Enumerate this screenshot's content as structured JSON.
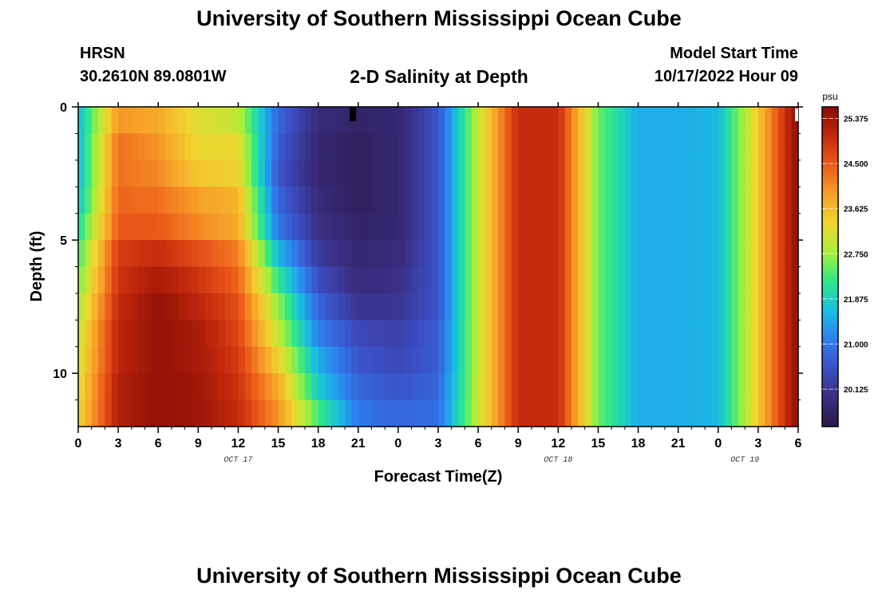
{
  "header": {
    "title": "University of Southern Mississippi Ocean Cube",
    "station": "HRSN",
    "coords": "30.2610N  89.0801W",
    "plot_title": "2-D Salinity at Depth",
    "start_label": "Model Start Time",
    "start_value": "10/17/2022 Hour 09"
  },
  "footer": {
    "title": "University of Southern Mississippi Ocean Cube"
  },
  "colors": {
    "scale": [
      "#2a1a4a",
      "#3a2d80",
      "#3b4fc4",
      "#2f7ff0",
      "#18bfe0",
      "#2fe88a",
      "#a6f03a",
      "#f0d630",
      "#f7a028",
      "#ec5a1a",
      "#c2280c",
      "#8a0d05"
    ]
  },
  "chart_data": {
    "type": "heatmap",
    "xlabel": "Forecast Time(Z)",
    "ylabel": "Depth (ft)",
    "x_range_hours": [
      0,
      54
    ],
    "x_tick_labels": [
      "0",
      "3",
      "6",
      "9",
      "12",
      "15",
      "18",
      "21",
      "0",
      "3",
      "6",
      "9",
      "12",
      "15",
      "18",
      "21",
      "0",
      "3",
      "6"
    ],
    "date_labels": [
      "OCT 17",
      "OCT 18",
      "OCT 19"
    ],
    "y_ticks": [
      "0",
      "5",
      "10"
    ],
    "ylim": [
      0,
      12
    ],
    "colorbar": {
      "unit": "psu",
      "min": 19.4,
      "max": 25.6,
      "ticks": [
        "25.375",
        "24.500",
        "23.625",
        "22.750",
        "21.875",
        "21.000",
        "20.125"
      ]
    },
    "depth_levels_ft": [
      0.5,
      1.5,
      2.5,
      3.5,
      4.5,
      5.5,
      6.5,
      7.5,
      8.5,
      9.5,
      10.5,
      11.5
    ],
    "time_hours": [
      0,
      3,
      6,
      9,
      12,
      15,
      18,
      21,
      24,
      27,
      30,
      33,
      36,
      39,
      42,
      45,
      48,
      51,
      54
    ],
    "salinity_psu": [
      [
        21.6,
        24.0,
        23.8,
        23.2,
        23.0,
        20.8,
        19.9,
        19.7,
        19.8,
        20.6,
        23.0,
        25.0,
        25.0,
        22.5,
        21.5,
        21.5,
        21.6,
        23.5,
        25.6
      ],
      [
        21.6,
        24.3,
        24.0,
        23.3,
        23.3,
        20.7,
        19.8,
        19.6,
        19.8,
        20.6,
        23.0,
        25.0,
        25.0,
        22.5,
        21.5,
        21.5,
        21.6,
        23.5,
        25.6
      ],
      [
        21.6,
        24.3,
        24.1,
        23.5,
        23.4,
        20.6,
        19.8,
        19.6,
        19.8,
        20.6,
        23.0,
        25.0,
        25.0,
        22.5,
        21.5,
        21.5,
        21.6,
        23.5,
        25.6
      ],
      [
        21.7,
        24.4,
        24.3,
        23.9,
        23.7,
        20.8,
        19.9,
        19.6,
        19.8,
        20.6,
        23.0,
        25.0,
        25.0,
        22.5,
        21.5,
        21.5,
        21.6,
        23.5,
        25.6
      ],
      [
        22.0,
        24.5,
        24.5,
        24.1,
        23.8,
        21.0,
        20.0,
        19.7,
        19.8,
        20.6,
        23.0,
        25.0,
        25.0,
        22.5,
        21.5,
        21.5,
        21.6,
        23.5,
        25.6
      ],
      [
        22.3,
        24.8,
        25.0,
        24.6,
        24.2,
        21.6,
        20.2,
        19.8,
        19.9,
        20.6,
        23.0,
        25.0,
        25.0,
        22.5,
        21.5,
        21.5,
        21.6,
        23.5,
        25.6
      ],
      [
        22.5,
        24.9,
        25.3,
        24.9,
        24.4,
        22.2,
        20.5,
        19.9,
        20.0,
        20.6,
        23.0,
        25.0,
        25.0,
        22.5,
        21.5,
        21.5,
        21.6,
        23.5,
        25.6
      ],
      [
        22.8,
        25.0,
        25.5,
        25.1,
        24.6,
        22.7,
        20.8,
        20.1,
        20.1,
        20.6,
        23.0,
        25.0,
        25.0,
        22.5,
        21.5,
        21.5,
        21.6,
        23.5,
        25.6
      ],
      [
        23.0,
        25.1,
        25.5,
        25.3,
        24.7,
        23.0,
        21.1,
        20.4,
        20.3,
        20.7,
        23.0,
        25.0,
        25.0,
        22.5,
        21.5,
        21.5,
        21.6,
        23.5,
        25.6
      ],
      [
        23.1,
        25.1,
        25.5,
        25.3,
        24.8,
        23.4,
        21.5,
        20.6,
        20.4,
        20.7,
        23.0,
        25.0,
        25.0,
        22.5,
        21.5,
        21.5,
        21.6,
        23.5,
        25.6
      ],
      [
        23.2,
        25.2,
        25.5,
        25.4,
        24.9,
        23.8,
        21.8,
        20.8,
        20.6,
        20.8,
        23.0,
        25.0,
        25.0,
        22.5,
        21.5,
        21.5,
        21.6,
        23.5,
        25.6
      ],
      [
        23.3,
        25.2,
        25.5,
        25.4,
        25.0,
        24.0,
        22.3,
        21.0,
        20.8,
        20.9,
        23.0,
        25.0,
        25.0,
        22.5,
        21.5,
        21.5,
        21.6,
        23.5,
        25.6
      ]
    ]
  }
}
